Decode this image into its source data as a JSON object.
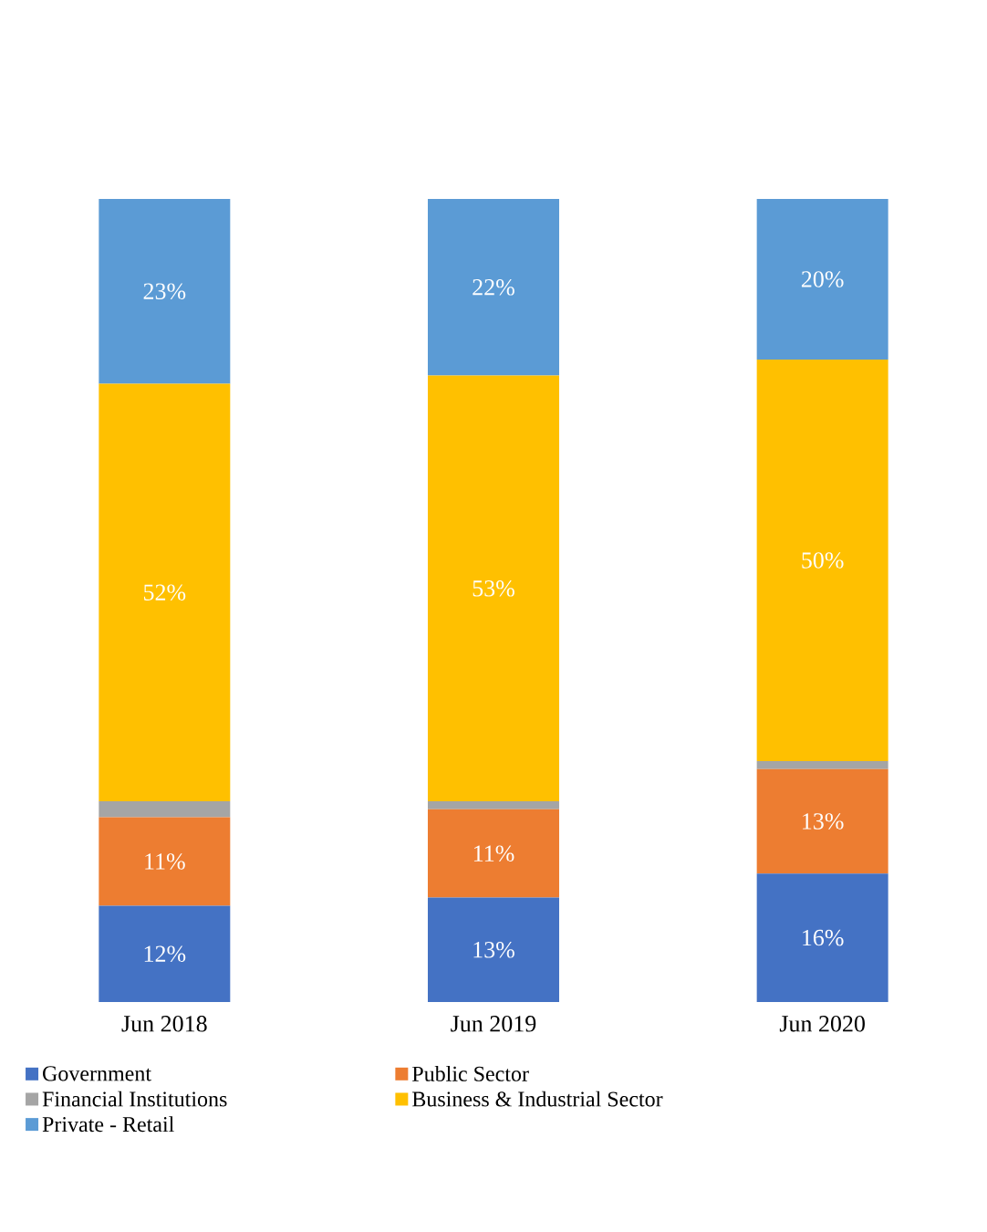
{
  "chart_data": {
    "type": "bar",
    "stacked": true,
    "categories": [
      "Jun 2018",
      "Jun 2019",
      "Jun 2020"
    ],
    "legend": "bottom",
    "tick_labels": "x",
    "series": [
      {
        "name": "Government",
        "color": "#4472c4",
        "values": [
          12,
          13,
          16
        ],
        "value_labels": [
          "12%",
          "13%",
          "16%"
        ]
      },
      {
        "name": "Public Sector",
        "color": "#ed7d31",
        "values": [
          11,
          11,
          13
        ],
        "value_labels": [
          "11%",
          "11%",
          "13%"
        ]
      },
      {
        "name": "Financial Institutions",
        "color": "#a5a5a5",
        "values": [
          2,
          1,
          1
        ],
        "value_labels": [
          null,
          null,
          null
        ]
      },
      {
        "name": "Business & Industrial Sector",
        "color": "#ffc000",
        "values": [
          52,
          53,
          50
        ],
        "value_labels": [
          "52%",
          "53%",
          "50%"
        ]
      },
      {
        "name": "Private - Retail",
        "color": "#5b9bd5",
        "values": [
          23,
          22,
          20
        ],
        "value_labels": [
          "23%",
          "22%",
          "20%"
        ]
      }
    ]
  }
}
